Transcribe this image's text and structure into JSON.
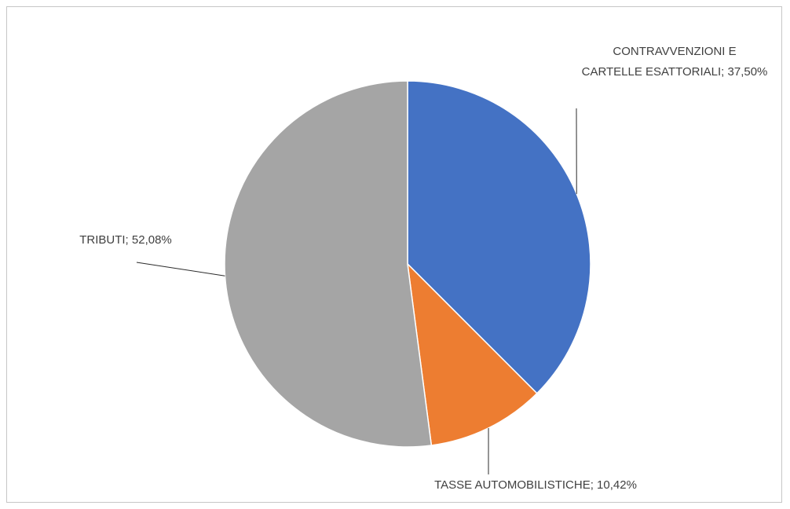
{
  "chart_data": {
    "type": "pie",
    "categories": [
      "CONTRAVVENZIONI E CARTELLE ESATTORIALI",
      "TASSE AUTOMOBILISTICHE",
      "TRIBUTI"
    ],
    "values": [
      37.5,
      10.42,
      52.08
    ],
    "colors": [
      "#4472C4",
      "#ED7D31",
      "#A5A5A5"
    ],
    "data_labels": [
      {
        "lines": [
          "CONTRAVVENZIONI E",
          "CARTELLE ESATTORIALI; 37,50%"
        ]
      },
      {
        "lines": [
          "TASSE AUTOMOBILISTICHE; 10,42%"
        ]
      },
      {
        "lines": [
          "TRIBUTI; 52,08%"
        ]
      }
    ],
    "unit": "%",
    "start_angle_deg": 0,
    "direction": "clockwise",
    "legend": "none"
  }
}
